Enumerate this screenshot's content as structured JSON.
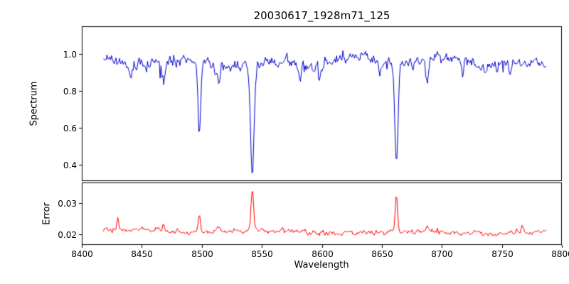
{
  "chart_data": {
    "type": "line",
    "title": "20030617_1928m71_125",
    "xlabel": "Wavelength",
    "x_range": [
      8400,
      8800
    ],
    "x_data_range": [
      8418,
      8787
    ],
    "x_ticks": [
      "8400",
      "8450",
      "8500",
      "8550",
      "8600",
      "8650",
      "8700",
      "8750",
      "8800"
    ],
    "grid": false,
    "legend": "none",
    "seed": 20030617,
    "panels": [
      {
        "name": "spectrum",
        "ylabel": "Spectrum",
        "line_color": "#0000cc",
        "ylim": [
          0.31,
          1.15
        ],
        "y_ticks": [
          "0.4",
          "0.6",
          "0.8",
          "1.0"
        ],
        "continuum": 0.953,
        "noise_std": 0.027,
        "absorption_lines": [
          {
            "center": 8441,
            "depth": 0.1,
            "sigma": 1.0
          },
          {
            "center": 8468,
            "depth": 0.09,
            "sigma": 0.9
          },
          {
            "center": 8498.0,
            "depth": 0.39,
            "sigma": 1.1
          },
          {
            "center": 8514,
            "depth": 0.1,
            "sigma": 0.9
          },
          {
            "center": 8542.1,
            "depth": 0.61,
            "sigma": 1.5
          },
          {
            "center": 8582,
            "depth": 0.07,
            "sigma": 0.9
          },
          {
            "center": 8598,
            "depth": 0.06,
            "sigma": 0.9
          },
          {
            "center": 8648,
            "depth": 0.07,
            "sigma": 0.9
          },
          {
            "center": 8662.1,
            "depth": 0.55,
            "sigma": 1.3
          },
          {
            "center": 8688,
            "depth": 0.17,
            "sigma": 1.0
          },
          {
            "center": 8717,
            "depth": 0.07,
            "sigma": 0.9
          },
          {
            "center": 8736,
            "depth": 0.06,
            "sigma": 0.9
          },
          {
            "center": 8757,
            "depth": 0.06,
            "sigma": 0.9
          }
        ]
      },
      {
        "name": "error",
        "ylabel": "Error",
        "line_color": "#ff0000",
        "ylim": [
          0.0165,
          0.0365
        ],
        "y_ticks": [
          "0.02",
          "0.03"
        ],
        "baseline": 0.0207,
        "noise_std": 0.0006,
        "emission_spikes": [
          {
            "center": 8430,
            "height": 0.003,
            "sigma": 0.9
          },
          {
            "center": 8468,
            "height": 0.002,
            "sigma": 0.9
          },
          {
            "center": 8498.0,
            "height": 0.006,
            "sigma": 0.9
          },
          {
            "center": 8514,
            "height": 0.0015,
            "sigma": 0.9
          },
          {
            "center": 8542.1,
            "height": 0.0135,
            "sigma": 1.0
          },
          {
            "center": 8662.1,
            "height": 0.012,
            "sigma": 1.0
          },
          {
            "center": 8688,
            "height": 0.0018,
            "sigma": 0.9
          },
          {
            "center": 8727,
            "height": 0.0012,
            "sigma": 0.9
          },
          {
            "center": 8767,
            "height": 0.0022,
            "sigma": 0.9
          }
        ]
      }
    ]
  }
}
